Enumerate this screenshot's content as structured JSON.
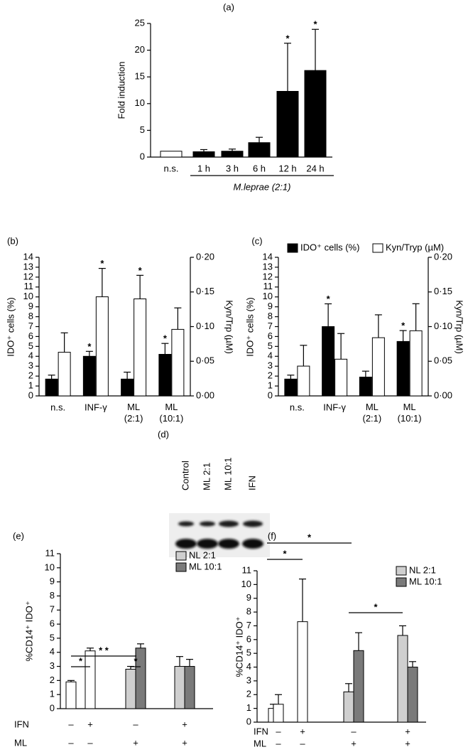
{
  "chart_data": [
    {
      "type": "bar",
      "title": "(a)",
      "y_label": "Fold induction",
      "categories": [
        "n.s.",
        "1 h",
        "3 h",
        "6 h",
        "12 h",
        "24 h"
      ],
      "values": [
        1.1,
        1.0,
        1.1,
        2.7,
        12.3,
        16.2
      ],
      "errors": [
        null,
        0.4,
        0.4,
        1.0,
        9.0,
        7.7
      ],
      "colors": [
        "#ffffff",
        "#000000",
        "#000000",
        "#000000",
        "#000000",
        "#000000"
      ],
      "significance": [
        null,
        null,
        null,
        null,
        "*",
        "*"
      ],
      "group_label": "M.leprae (2:1)",
      "ylim": [
        0,
        25
      ],
      "yticks": [
        0,
        5,
        10,
        15,
        20,
        25
      ]
    },
    {
      "type": "bar",
      "title": "(b)",
      "y_label": "IDO⁺ cells (%)",
      "y2_label": "Kyn/Trp (µM)",
      "categories": [
        "n.s.",
        "INF-γ",
        "ML (2:1)",
        "ML (10:1)"
      ],
      "series": [
        {
          "color": "#000000",
          "values": [
            1.7,
            4.0,
            1.7,
            4.2
          ],
          "errors": [
            0.4,
            0.5,
            0.7,
            1.1
          ],
          "significance": [
            null,
            "*",
            null,
            "*"
          ]
        },
        {
          "color": "#ffffff",
          "axis": "y2",
          "values": [
            0.063,
            0.143,
            0.14,
            0.096
          ],
          "errors": [
            0.028,
            0.041,
            0.034,
            0.031
          ],
          "significance": [
            null,
            "*",
            "*",
            null
          ]
        }
      ],
      "ylim": [
        0,
        14
      ],
      "yticks": [
        0,
        1,
        2,
        3,
        4,
        5,
        6,
        7,
        8,
        9,
        10,
        11,
        12,
        13,
        14
      ],
      "y2lim": [
        0,
        0.2
      ],
      "y2ticks": [
        {
          "value": 0,
          "label": "0·00"
        },
        {
          "value": 0.05,
          "label": "0·05"
        },
        {
          "value": 0.1,
          "label": "0·10"
        },
        {
          "value": 0.15,
          "label": "0·15"
        },
        {
          "value": 0.2,
          "label": "0·20"
        }
      ]
    },
    {
      "type": "bar",
      "title": "(c)",
      "y_label": "IDO⁺ cells (%)",
      "y2_label": "Kyn/Trp (µM)",
      "categories": [
        "n.s.",
        "INF-γ",
        "ML (2:1)",
        "ML (10:1)"
      ],
      "series": [
        {
          "name": "IDO⁺ cells (%)",
          "color": "#000000",
          "values": [
            1.7,
            7.0,
            1.9,
            5.5
          ],
          "errors": [
            0.4,
            2.3,
            0.6,
            1.1
          ],
          "significance": [
            null,
            "*",
            null,
            "*"
          ]
        },
        {
          "name": "Kyn/Tryp (µM)",
          "color": "#ffffff",
          "axis": "y2",
          "values": [
            0.043,
            0.053,
            0.084,
            0.094
          ],
          "errors": [
            0.03,
            0.037,
            0.033,
            0.039
          ],
          "significance": [
            null,
            null,
            null,
            null
          ]
        }
      ],
      "ylim": [
        0,
        14
      ],
      "yticks": [
        0,
        1,
        2,
        3,
        4,
        5,
        6,
        7,
        8,
        9,
        10,
        11,
        12,
        13,
        14
      ],
      "y2lim": [
        0,
        0.2
      ],
      "y2ticks": [
        {
          "value": 0,
          "label": "0·00"
        },
        {
          "value": 0.05,
          "label": "0·05"
        },
        {
          "value": 0.1,
          "label": "0·10"
        },
        {
          "value": 0.15,
          "label": "0·15"
        },
        {
          "value": 0.2,
          "label": "0·20"
        }
      ]
    },
    {
      "type": "blot",
      "title": "(d)",
      "lanes": [
        "Control",
        "ML 2:1",
        "ML 10:1",
        "IFN"
      ]
    },
    {
      "type": "bar",
      "title": "(e)",
      "y_label": "%CD14⁺ IDO⁺",
      "series": [
        {
          "color": "#ffffff",
          "values": [
            1.9,
            4.1,
            null,
            null
          ],
          "errors": [
            0.1,
            0.2,
            null,
            null
          ]
        },
        {
          "name": "NL 2:1",
          "color": "#cfcfcf",
          "values": [
            null,
            null,
            2.8,
            3.0
          ],
          "errors": [
            null,
            null,
            0.2,
            0.7
          ]
        },
        {
          "name": "ML 10:1",
          "color": "#7a7a7a",
          "values": [
            null,
            null,
            4.3,
            3.0
          ],
          "errors": [
            null,
            null,
            0.3,
            0.5
          ]
        }
      ],
      "conditions": [
        {
          "label": "IFN",
          "values": [
            "–",
            "+",
            "–",
            "+"
          ]
        },
        {
          "label": "ML",
          "values": [
            "–",
            "–",
            "+",
            "+"
          ]
        }
      ],
      "brackets": [
        "*",
        "*",
        "* *"
      ],
      "ylim": [
        0,
        11
      ],
      "yticks": [
        0,
        1,
        2,
        3,
        4,
        5,
        6,
        7,
        8,
        9,
        10,
        11
      ]
    },
    {
      "type": "bar",
      "title": "(f)",
      "y_label": "%CD14⁺ IDO⁺",
      "series": [
        {
          "color": "#ffffff",
          "values": [
            1.0,
            null,
            null,
            null
          ],
          "errors": [
            0.3,
            null,
            null,
            null
          ]
        },
        {
          "color": "#ffffff",
          "values": [
            1.3,
            7.3,
            null,
            null
          ],
          "errors": [
            0.7,
            3.1,
            null,
            null
          ]
        },
        {
          "name": "NL 2:1",
          "color": "#cfcfcf",
          "values": [
            null,
            null,
            2.2,
            6.3
          ],
          "errors": [
            null,
            null,
            0.6,
            0.7
          ]
        },
        {
          "name": "ML 10:1",
          "color": "#7a7a7a",
          "values": [
            null,
            null,
            5.2,
            4.0
          ],
          "errors": [
            null,
            null,
            1.3,
            0.4
          ]
        }
      ],
      "conditions": [
        {
          "label": "IFN",
          "values": [
            "–",
            "+",
            "–",
            "+"
          ]
        },
        {
          "label": "ML",
          "values": [
            "–",
            "–",
            "+",
            "+"
          ]
        }
      ],
      "brackets": [
        "*",
        "*",
        "*"
      ],
      "ylim": [
        0,
        11
      ],
      "yticks": [
        0,
        1,
        2,
        3,
        4,
        5,
        6,
        7,
        8,
        9,
        10,
        11
      ]
    }
  ]
}
